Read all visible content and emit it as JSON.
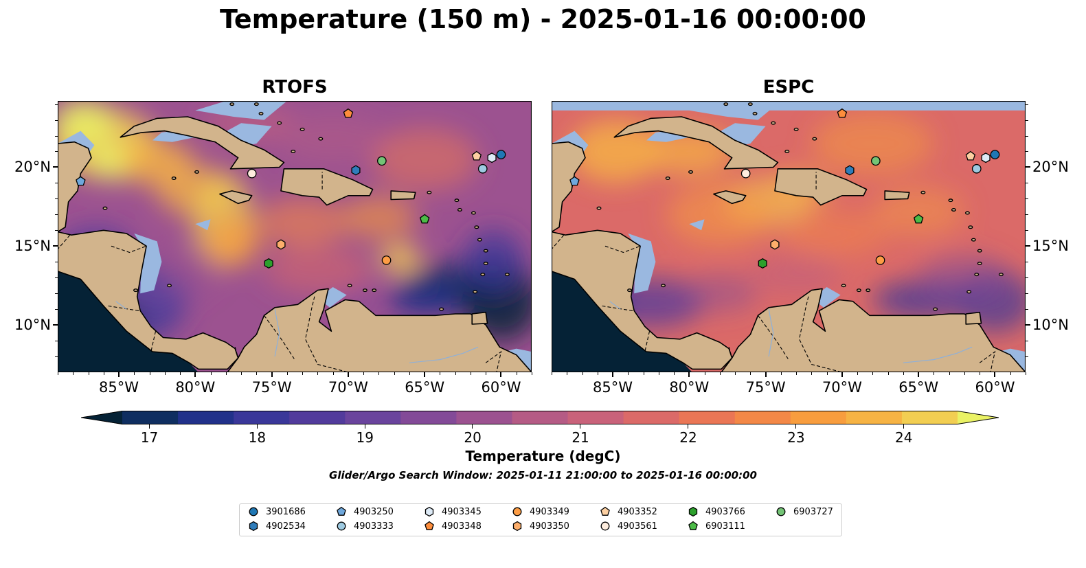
{
  "title": "Temperature (150 m) - 2025-01-16 00:00:00",
  "panels": [
    {
      "id": "left",
      "title": "RTOFS"
    },
    {
      "id": "right",
      "title": "ESPC"
    }
  ],
  "map": {
    "lon_range": [
      -89,
      -58
    ],
    "lat_range": [
      7,
      24.2
    ],
    "lon_ticks": [
      "85°W",
      "80°W",
      "75°W",
      "70°W",
      "65°W",
      "60°W"
    ],
    "lat_ticks": [
      "20°N",
      "15°N",
      "10°N"
    ],
    "colors": {
      "land": "#d2b48c",
      "shallow_water": "#9ab8e0",
      "deep_shade": "#052236",
      "coast": "#000000"
    }
  },
  "colorbar": {
    "label": "Temperature (degC)",
    "ticks": [
      "17",
      "18",
      "19",
      "20",
      "21",
      "22",
      "23",
      "24"
    ],
    "range": [
      16.75,
      24.5
    ],
    "colors": [
      "#052236",
      "#0f2e60",
      "#21318a",
      "#3a3799",
      "#523b9c",
      "#6a449d",
      "#834a98",
      "#9c5290",
      "#b55b85",
      "#c9627a",
      "#db6a68",
      "#ea7655",
      "#f38847",
      "#f89d3e",
      "#f6b344",
      "#f2ce52",
      "#eaf265"
    ]
  },
  "search_window": "Glider/Argo Search Window: 2025-01-11 21:00:00 to 2025-01-16 00:00:00",
  "floats": [
    {
      "id": "3901686",
      "marker": "circle",
      "color": "#1f77b4",
      "lon": -60.0,
      "lat": 20.8
    },
    {
      "id": "4902534",
      "marker": "hexagon",
      "color": "#2f7dbb",
      "lon": -69.5,
      "lat": 19.8
    },
    {
      "id": "4903250",
      "marker": "pentagon",
      "color": "#6fa8dc",
      "lon": -87.5,
      "lat": 19.1
    },
    {
      "id": "4903333",
      "marker": "circle",
      "color": "#9ecae1",
      "lon": -61.2,
      "lat": 19.9
    },
    {
      "id": "4903345",
      "marker": "hexagon",
      "color": "#deebf7",
      "lon": -60.6,
      "lat": 20.6
    },
    {
      "id": "4903348",
      "marker": "pentagon",
      "color": "#fd8d3c",
      "lon": -70.0,
      "lat": 23.4
    },
    {
      "id": "4903349",
      "marker": "circle",
      "color": "#fd9d45",
      "lon": -67.5,
      "lat": 14.1
    },
    {
      "id": "4903350",
      "marker": "hexagon",
      "color": "#fdae6b",
      "lon": -74.4,
      "lat": 15.1
    },
    {
      "id": "4903352",
      "marker": "pentagon",
      "color": "#fdd0a2",
      "lon": -61.6,
      "lat": 20.7
    },
    {
      "id": "4903561",
      "marker": "circle",
      "color": "#feedde",
      "lon": -76.3,
      "lat": 19.6
    },
    {
      "id": "4903766",
      "marker": "hexagon",
      "color": "#2ca02c",
      "lon": -75.2,
      "lat": 13.9
    },
    {
      "id": "6903111",
      "marker": "pentagon",
      "color": "#4cbb47",
      "lon": -65.0,
      "lat": 16.7
    },
    {
      "id": "6903727",
      "marker": "circle",
      "color": "#74c476",
      "lon": -67.8,
      "lat": 20.4
    }
  ]
}
